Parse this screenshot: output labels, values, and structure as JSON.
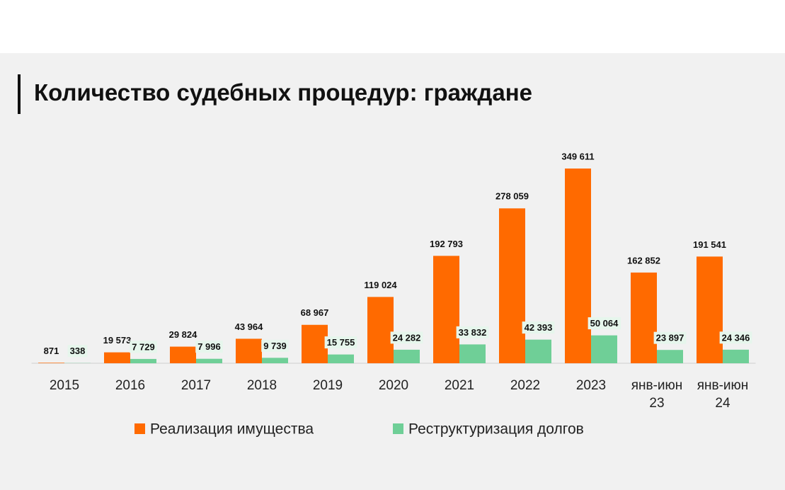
{
  "chart_data": {
    "type": "bar",
    "title": "Количество судебных процедур: граждане",
    "categories": [
      "2015",
      "2016",
      "2017",
      "2018",
      "2019",
      "2020",
      "2021",
      "2022",
      "2023",
      "янв-июн 23",
      "янв-июн 24"
    ],
    "series": [
      {
        "name": "Реализация имущества",
        "color": "#ff6a00",
        "values": [
          871,
          19573,
          29824,
          43964,
          68967,
          119024,
          192793,
          278059,
          349611,
          162852,
          191541
        ],
        "value_labels": [
          "871",
          "19 573",
          "29 824",
          "43 964",
          "68 967",
          "119 024",
          "192 793",
          "278 059",
          "349 611",
          "162 852",
          "191 541"
        ]
      },
      {
        "name": "Реструктуризация долгов",
        "color": "#6fcf97",
        "values": [
          338,
          7729,
          7996,
          9739,
          15755,
          24282,
          33832,
          42393,
          50064,
          23897,
          24346
        ],
        "value_labels": [
          "338",
          "7 729",
          "7 996",
          "9 739",
          "15 755",
          "24 282",
          "33 832",
          "42 393",
          "50 064",
          "23 897",
          "24 346"
        ]
      }
    ]
  }
}
